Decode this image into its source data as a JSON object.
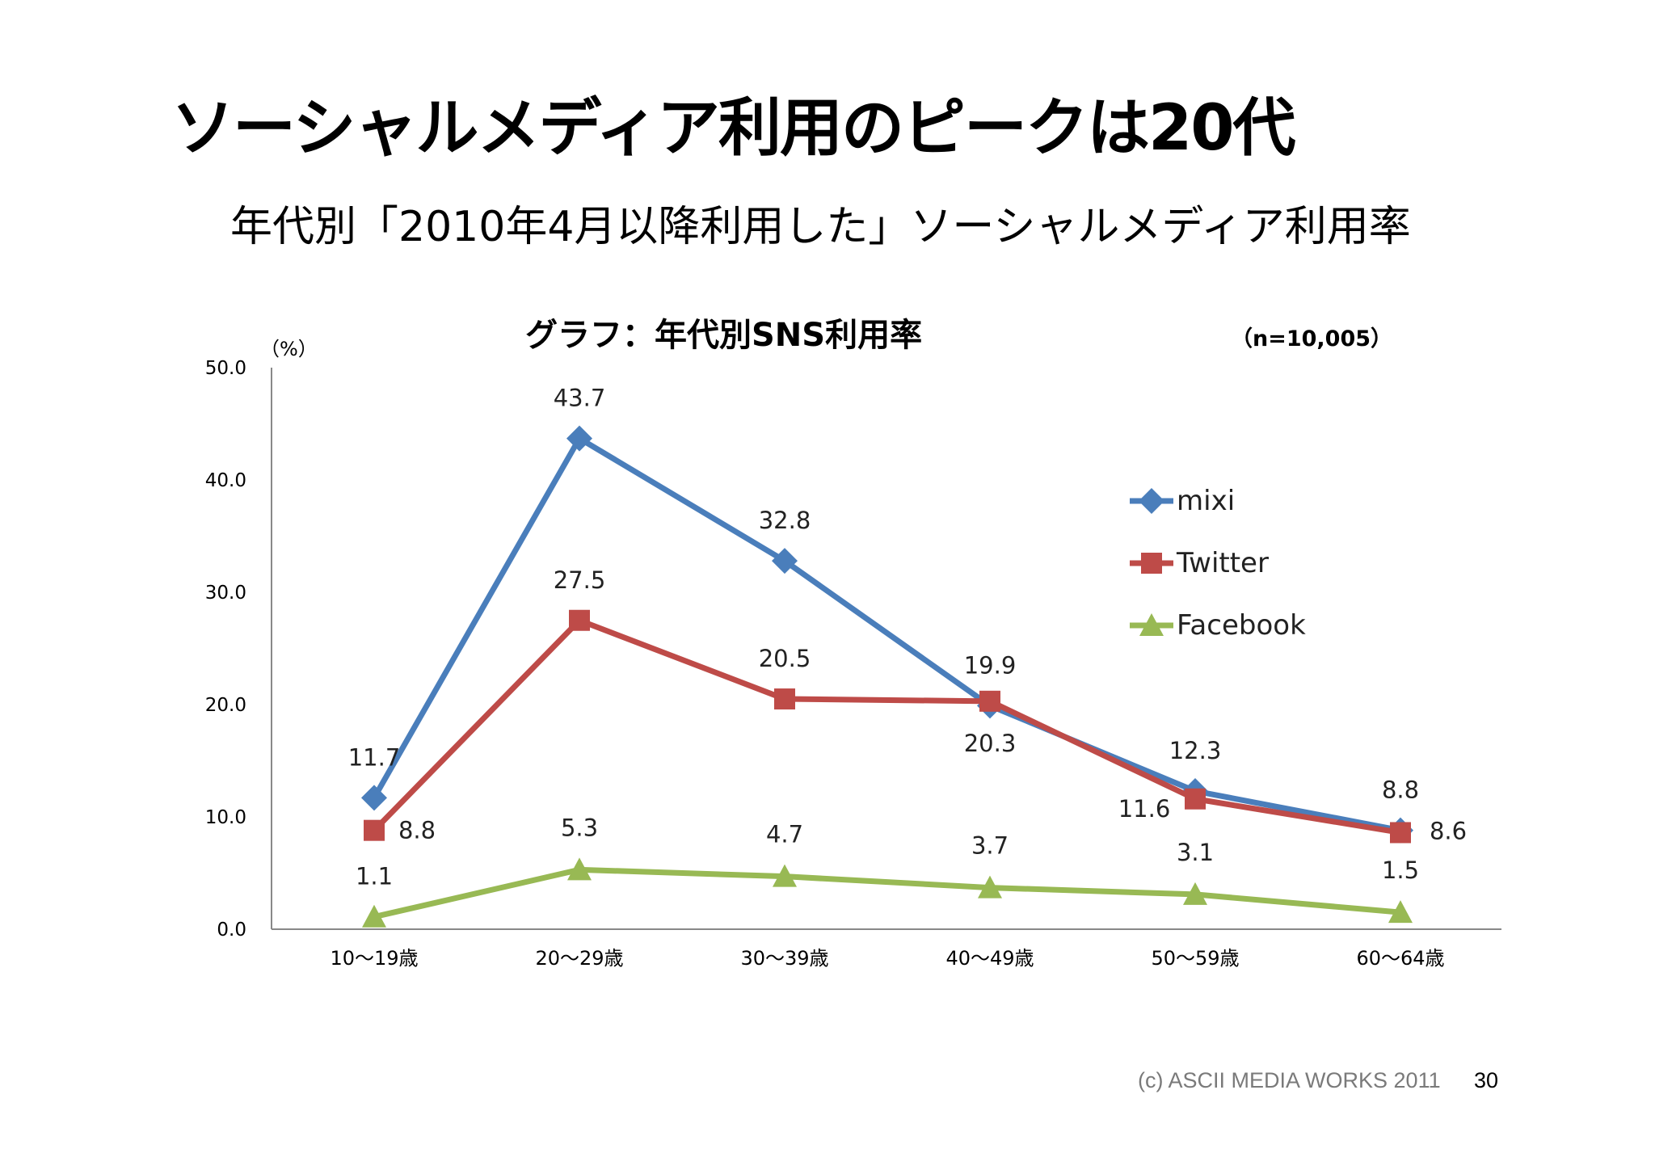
{
  "slide": {
    "title": "ソーシャルメディア利用のピークは20代",
    "subtitle": "年代別「2010年4月以降利用した」ソーシャルメディア利用率",
    "footer_credit": "(c) ASCII MEDIA WORKS 2011",
    "page_number": "30"
  },
  "chart_data": {
    "type": "line",
    "title": "グラフ：年代別SNS利用率",
    "sample_note": "（n=10,005）",
    "unit_label": "（%）",
    "ylim": [
      0,
      50
    ],
    "y_ticks": [
      "0.0",
      "10.0",
      "20.0",
      "30.0",
      "40.0",
      "50.0"
    ],
    "categories": [
      "10〜19歳",
      "20〜29歳",
      "30〜39歳",
      "40〜49歳",
      "50〜59歳",
      "60〜64歳"
    ],
    "legend_position": "right",
    "grid": false,
    "series": [
      {
        "name": "mixi",
        "color": "#4a7ebb",
        "marker": "diamond",
        "values": [
          11.7,
          43.7,
          32.8,
          19.9,
          12.3,
          8.8
        ],
        "labels": [
          "11.7",
          "43.7",
          "32.8",
          "19.9",
          "12.3",
          "8.8"
        ]
      },
      {
        "name": "Twitter",
        "color": "#be4b48",
        "marker": "square",
        "values": [
          8.8,
          27.5,
          20.5,
          20.3,
          11.6,
          8.6
        ],
        "labels": [
          "8.8",
          "27.5",
          "20.5",
          "20.3",
          "11.6",
          "8.6"
        ]
      },
      {
        "name": "Facebook",
        "color": "#98b954",
        "marker": "triangle",
        "values": [
          1.1,
          5.3,
          4.7,
          3.7,
          3.1,
          1.5
        ],
        "labels": [
          "1.1",
          "5.3",
          "4.7",
          "3.7",
          "3.1",
          "1.5"
        ]
      }
    ]
  }
}
